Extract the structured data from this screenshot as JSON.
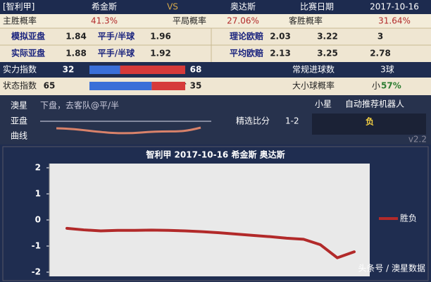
{
  "header": {
    "league": "[智利甲]",
    "home": "希金斯",
    "vs": "VS",
    "away": "奥达斯",
    "date_label": "比赛日期",
    "date": "2017-10-16"
  },
  "probabilities": [
    [
      "主胜概率",
      "41.3%"
    ],
    [
      "平局概率",
      "27.06%"
    ],
    [
      "客胜概率",
      "31.64%"
    ]
  ],
  "odds": [
    [
      "模拟亚盘",
      "1.84",
      "平手/半球",
      "1.96",
      "理论欧赔",
      "2.03",
      "3.22",
      "3"
    ],
    [
      "实际亚盘",
      "1.88",
      "平手/半球",
      "1.92",
      "平均欧赔",
      "2.13",
      "3.25",
      "2.78"
    ]
  ],
  "indices": {
    "strength": {
      "label": "实力指数",
      "home": 32,
      "away": 68
    },
    "status": {
      "label": "状态指数",
      "home": 65,
      "trend": "↑",
      "away": 35
    },
    "goals": {
      "label": "常规进球数",
      "value": "3球"
    },
    "over_under": {
      "label": "大小球概率",
      "side": "小",
      "prob": "57%"
    }
  },
  "panel": {
    "brand": [
      "澳星",
      "亚盘",
      "曲线"
    ],
    "tip": "下盘，去客队@平/半",
    "pick_label": "精选比分",
    "pick": "1-2",
    "robot_name": "小星",
    "robot_title": "自动推荐机器人",
    "result": "负",
    "version": "v2.2"
  },
  "chart_data": {
    "type": "line",
    "title": "智利甲 2017-10-16 希金斯 奥达斯",
    "categories": [
      null,
      null,
      null,
      null,
      null,
      null,
      null,
      null,
      null,
      null,
      null,
      null,
      null,
      null,
      null,
      null,
      null,
      null
    ],
    "series": [
      {
        "name": "胜负",
        "color": "#b22a2a",
        "values": [
          -0.32,
          -0.38,
          -0.42,
          -0.4,
          -0.4,
          -0.39,
          -0.4,
          -0.42,
          -0.45,
          -0.49,
          -0.54,
          -0.59,
          -0.64,
          -0.7,
          -0.74,
          -0.95,
          -1.45,
          -1.22
        ]
      }
    ],
    "ylim": [
      -2,
      2
    ],
    "yticks": [
      -2,
      -1,
      0,
      1,
      2
    ],
    "grid": false
  },
  "watermark": "头条号 / 澳星数据"
}
